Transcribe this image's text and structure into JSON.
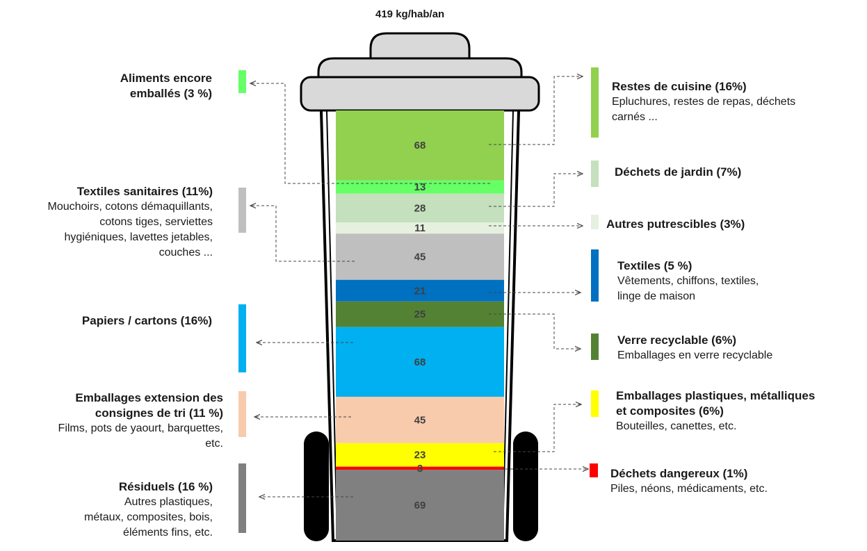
{
  "chart_data": {
    "type": "bar",
    "stacked": true,
    "title": "419 kg/hab/an",
    "unit": "kg/hab/an",
    "segments": [
      {
        "value": 68,
        "label": "Restes de cuisine (16%)",
        "detail": "Epluchures, restes de repas, déchets carnés ...",
        "color": "#92d050",
        "side": "right"
      },
      {
        "value": 13,
        "label": "Aliments encore emballés (3 %)",
        "detail": "",
        "color": "#66ff66",
        "side": "left"
      },
      {
        "value": 28,
        "label": "Déchets de jardin (7%)",
        "detail": "",
        "color": "#c4e0bd",
        "side": "right"
      },
      {
        "value": 11,
        "label": "Autres putrescibles (3%)",
        "detail": "",
        "color": "#e6f0df",
        "side": "right"
      },
      {
        "value": 45,
        "label": "Textiles sanitaires (11%)",
        "detail": "Mouchoirs, cotons démaquillants, cotons tiges, serviettes hygiéniques, lavettes jetables, couches ...",
        "color": "#bfbfbf",
        "side": "left"
      },
      {
        "value": 21,
        "label": "Textiles (5 %)",
        "detail": "Vêtements, chiffons, textiles, linge de maison",
        "color": "#0070c0",
        "side": "right"
      },
      {
        "value": 25,
        "label": "Verre recyclable (6%)",
        "detail": "Emballages en verre recyclable",
        "color": "#548235",
        "side": "right"
      },
      {
        "value": 68,
        "label": "Papiers / cartons (16%)",
        "detail": "",
        "color": "#00b0f0",
        "side": "left"
      },
      {
        "value": 45,
        "label": "Emballages extension des consignes de tri (11 %)",
        "detail": "Films, pots de yaourt, barquettes, etc.",
        "color": "#f8cbad",
        "side": "left"
      },
      {
        "value": 23,
        "label": "Emballages plastiques, métalliques et composites (6%)",
        "detail": "Bouteilles, canettes, etc.",
        "color": "#ffff00",
        "side": "right"
      },
      {
        "value": 3,
        "label": "Déchets dangereux (1%)",
        "detail": "Piles, néons, médicaments, etc.",
        "color": "#ff0000",
        "side": "right"
      },
      {
        "value": 69,
        "label": "Résiduels (16 %)",
        "detail": "Autres plastiques, métaux, composites, bois, éléments fins, etc.",
        "color": "#808080",
        "side": "left"
      }
    ]
  },
  "labels": {
    "aliments": {
      "h1": "Aliments encore",
      "h2": "emballés (3 %)"
    },
    "textiles_sanitaires": {
      "h": "Textiles sanitaires (11%)",
      "d1": "Mouchoirs, cotons démaquillants,",
      "d2": "cotons tiges, serviettes",
      "d3": "hygiéniques, lavettes jetables,",
      "d4": "couches ..."
    },
    "papiers": {
      "h": "Papiers / cartons (16%)"
    },
    "extension": {
      "h1": "Emballages extension des",
      "h2": "consignes de tri (11 %)",
      "d1": "Films, pots de yaourt, barquettes,",
      "d2": "etc."
    },
    "residuels": {
      "h": "Résiduels (16 %)",
      "d1": "Autres plastiques,",
      "d2": "métaux, composites, bois,",
      "d3": "éléments fins, etc."
    },
    "cuisine": {
      "h": "Restes de cuisine (16%)",
      "d1": "Epluchures, restes de repas, déchets",
      "d2": "carnés  ..."
    },
    "jardin": {
      "h": "Déchets de jardin (7%)"
    },
    "putrescibles": {
      "h": "Autres putrescibles (3%)"
    },
    "textiles": {
      "h": "Textiles (5 %)",
      "d1": "Vêtements, chiffons, textiles,",
      "d2": "linge de maison"
    },
    "verre": {
      "h": "Verre recyclable (6%)",
      "d1": "Emballages en verre recyclable"
    },
    "plastiques": {
      "h1": "Emballages plastiques, métalliques",
      "h2": "et composites (6%)",
      "d1": "Bouteilles, canettes, etc."
    },
    "dangereux": {
      "h": "Déchets dangereux (1%)",
      "d1": "Piles, néons, médicaments, etc."
    }
  }
}
